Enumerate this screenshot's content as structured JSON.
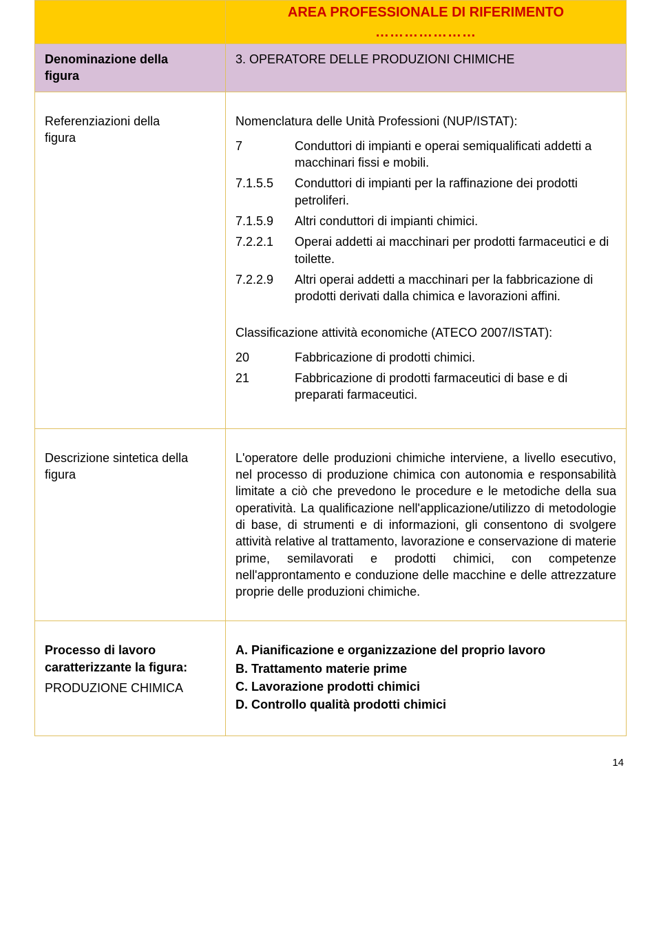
{
  "header": {
    "title": "AREA PROFESSIONALE DI RIFERIMENTO",
    "dots": "…………………"
  },
  "title_row": {
    "label_line1": "Denominazione della",
    "label_line2": "figura",
    "value": "3. OPERATORE DELLE PRODUZIONI CHIMICHE"
  },
  "ref": {
    "label_line1": "Referenziazioni della",
    "label_line2": "figura",
    "nup_heading": "Nomenclatura delle Unità Professioni (NUP/ISTAT):",
    "nup_items": [
      {
        "code": "7",
        "text": "Conduttori di impianti e operai semiqualificati addetti a macchinari fissi e mobili."
      },
      {
        "code": "7.1.5.5",
        "text": "Conduttori di impianti per la raffinazione dei prodotti petroliferi."
      },
      {
        "code": "7.1.5.9",
        "text": "Altri conduttori di impianti chimici."
      },
      {
        "code": "7.2.2.1",
        "text": "Operai addetti ai macchinari per prodotti farmaceutici e di toilette."
      },
      {
        "code": "7.2.2.9",
        "text": "Altri operai addetti a macchinari per la fabbricazione di prodotti derivati dalla chimica e lavorazioni affini."
      }
    ],
    "ateco_heading": "Classificazione attività economiche (ATECO 2007/ISTAT):",
    "ateco_items": [
      {
        "code": "20",
        "text": "Fabbricazione di prodotti chimici."
      },
      {
        "code": "21",
        "text": "Fabbricazione di prodotti farmaceutici di base e di preparati farmaceutici."
      }
    ]
  },
  "desc": {
    "label_line1": "Descrizione sintetica della",
    "label_line2": "figura",
    "text": "L'operatore delle produzioni chimiche interviene, a livello esecutivo, nel processo di produzione chimica con autonomia e responsabilità limitate a ciò che prevedono le procedure e le metodiche della sua operatività. La qualificazione nell'applicazione/utilizzo di metodologie di base, di strumenti e di informazioni, gli consentono di svolgere attività relative al trattamento, lavorazione e conservazione di materie prime, semilavorati e prodotti chimici, con competenze nell'approntamento e conduzione delle macchine e delle attrezzature proprie delle produzioni chimiche."
  },
  "proc": {
    "label_line1": "Processo di lavoro",
    "label_line2": "caratterizzante la figura:",
    "label_line3": "PRODUZIONE CHIMICA",
    "items": [
      "A. Pianificazione e organizzazione del proprio lavoro",
      "B. Trattamento materie prime",
      "C. Lavorazione prodotti chimici",
      "D. Controllo qualità prodotti chimici"
    ]
  },
  "page_number": "14"
}
